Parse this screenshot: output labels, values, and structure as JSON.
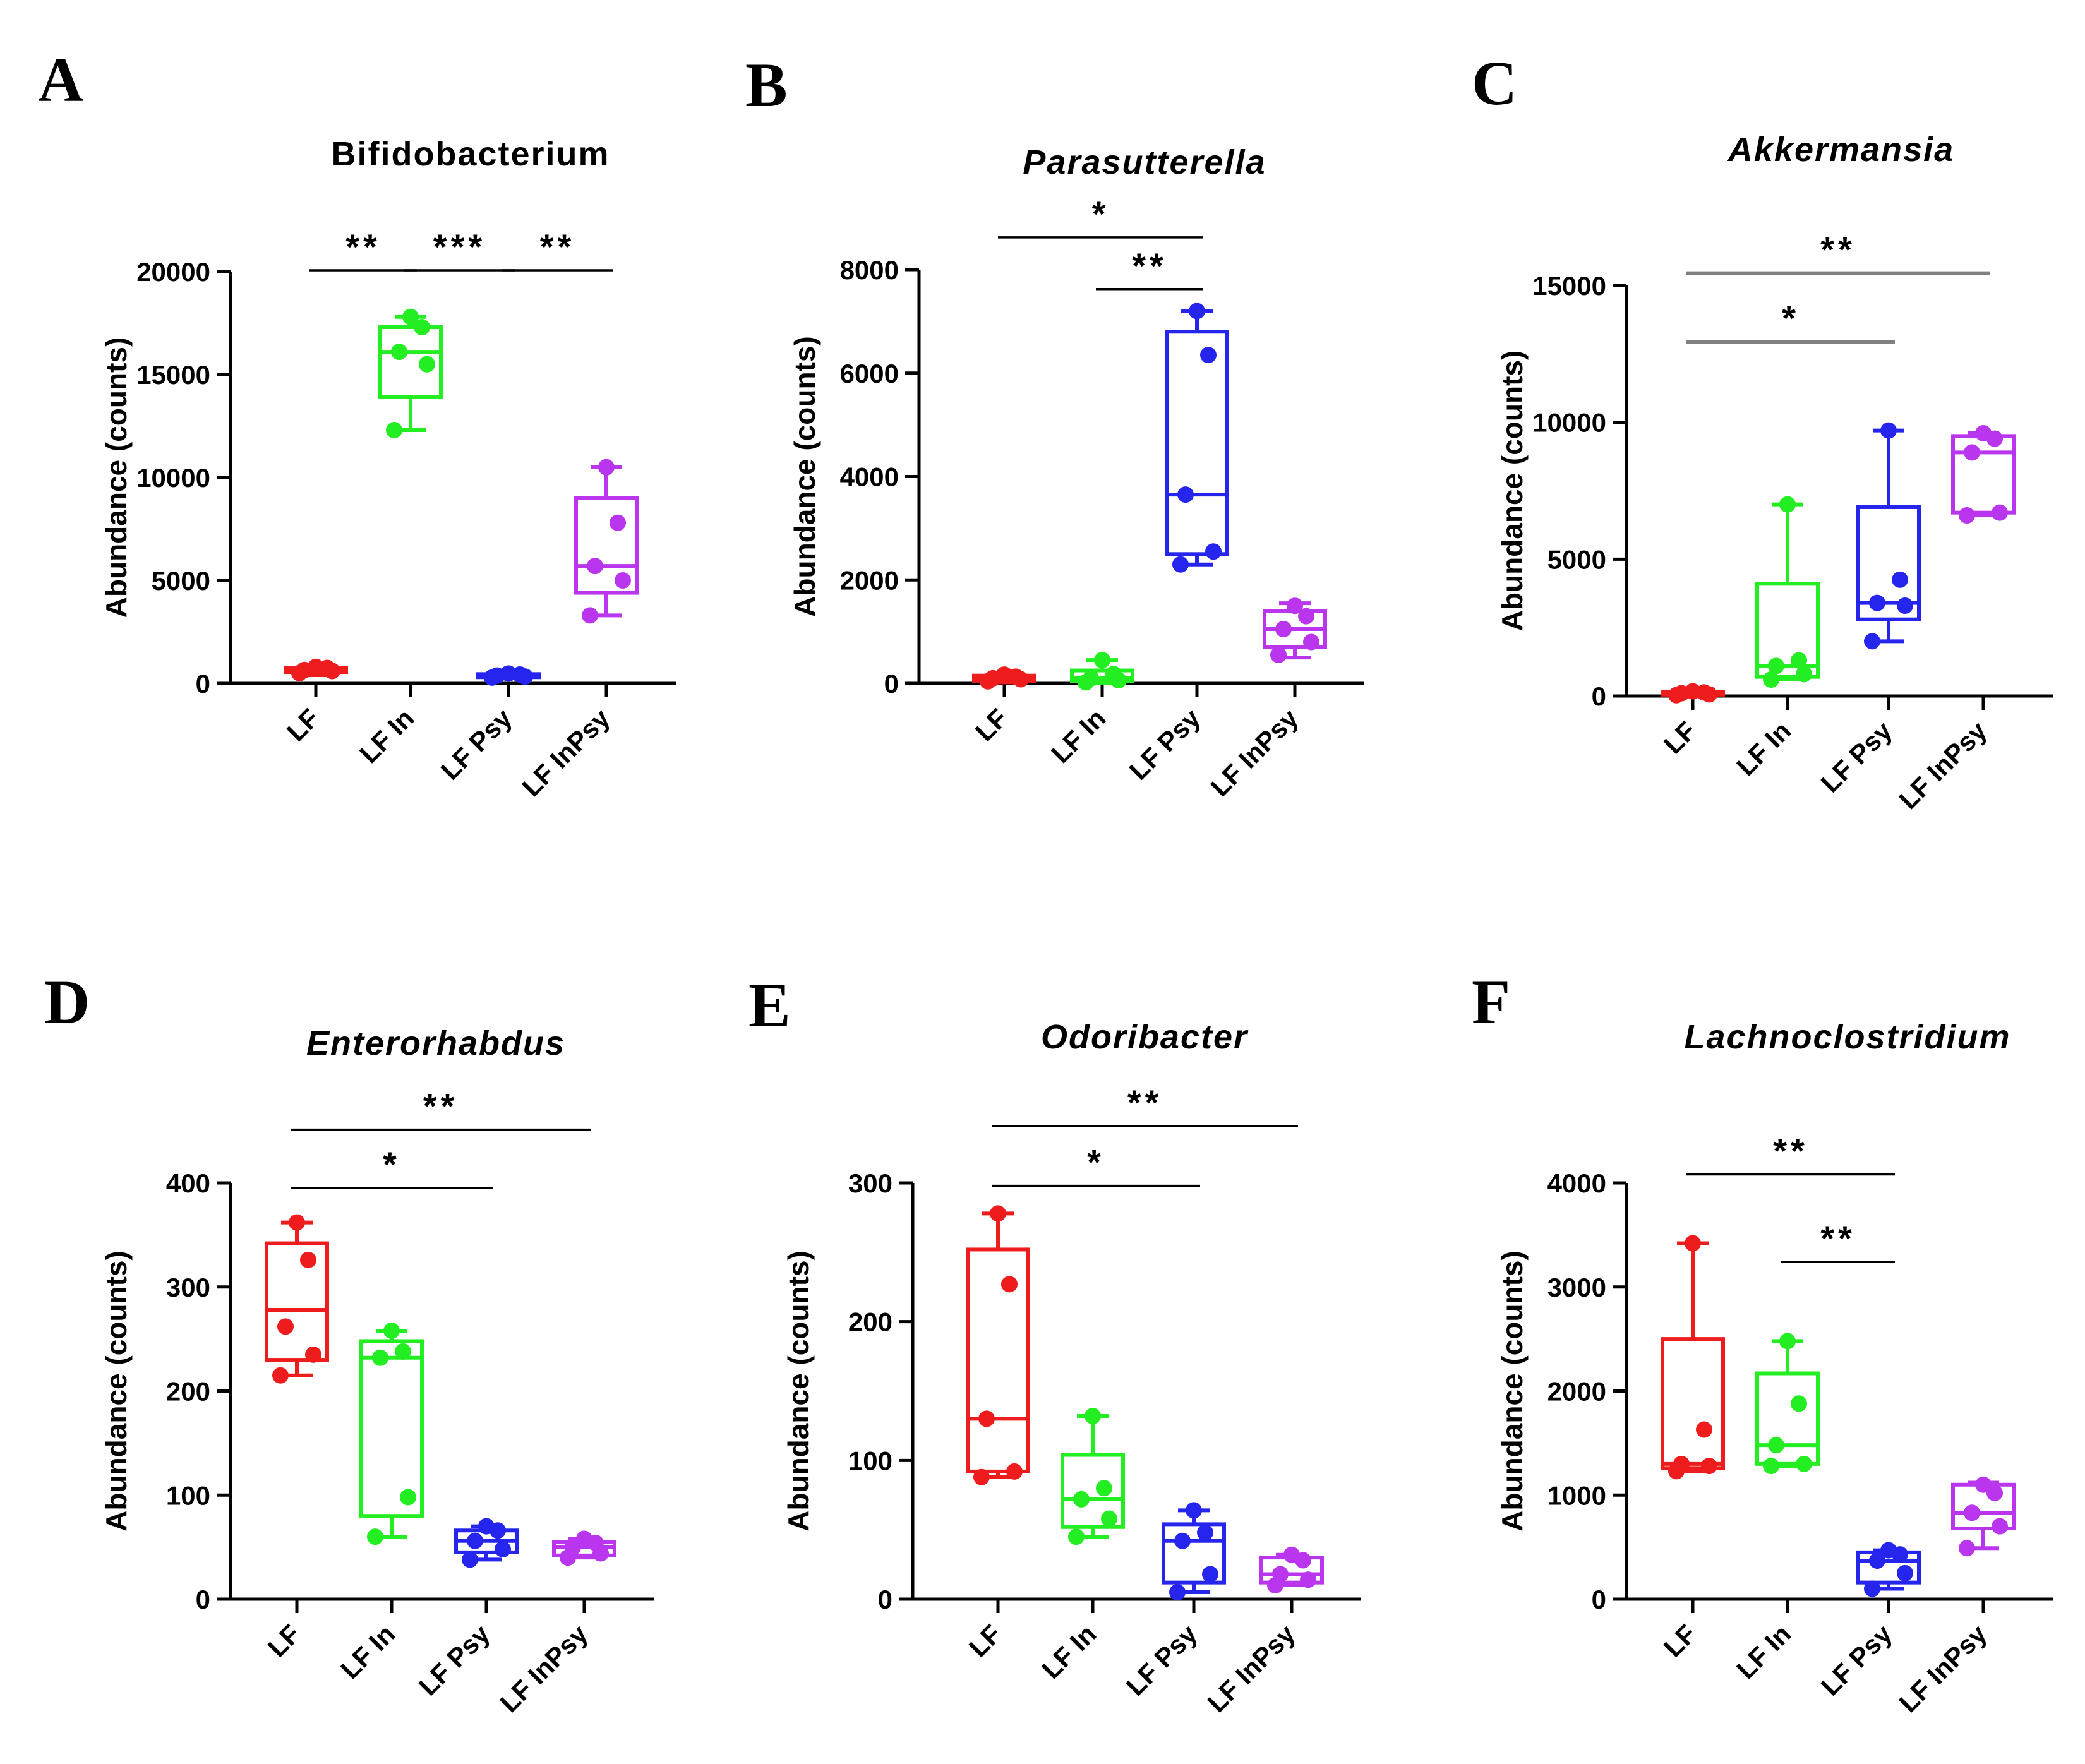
{
  "colors": {
    "LF": "#ee1c1c",
    "LF In": "#22ee22",
    "LF Psy": "#2525ee",
    "LF InPsy": "#b935ee",
    "axis": "#000000",
    "sigline": "#000000",
    "sigline_gray": "#808080"
  },
  "chart_data": [
    {
      "panel": "A",
      "type": "box",
      "title": "Bifidobacterium",
      "title_italic": false,
      "ylabel": "Abundance (counts)",
      "categories": [
        "LF",
        "LF In",
        "LF Psy",
        "LF InPsy"
      ],
      "ylim": [
        0,
        20000
      ],
      "yticks": [
        0,
        5000,
        10000,
        15000,
        20000
      ],
      "ytick_labels": [
        "0",
        "5000",
        "10000",
        "15000",
        "20000"
      ],
      "groups": [
        {
          "name": "LF",
          "min": 400,
          "q1": 550,
          "median": 650,
          "q3": 750,
          "max": 850,
          "points": [
            500,
            600,
            650,
            750,
            800
          ]
        },
        {
          "name": "LF In",
          "min": 12300,
          "q1": 13900,
          "median": 16100,
          "q3": 17300,
          "max": 17800,
          "points": [
            12300,
            15500,
            16100,
            17300,
            17800
          ]
        },
        {
          "name": "LF Psy",
          "min": 250,
          "q1": 300,
          "median": 380,
          "q3": 450,
          "max": 520,
          "points": [
            280,
            330,
            380,
            430,
            480
          ]
        },
        {
          "name": "LF InPsy",
          "min": 3300,
          "q1": 4400,
          "median": 5700,
          "q3": 9000,
          "max": 10500,
          "points": [
            3300,
            5000,
            5700,
            7800,
            10500
          ]
        }
      ],
      "significance": [
        {
          "from": "LF",
          "to": "LF In",
          "label": "**",
          "y": 20000,
          "color": "sigline"
        },
        {
          "from": "LF In",
          "to": "LF Psy",
          "label": "***",
          "y": 20000,
          "color": "sigline"
        },
        {
          "from": "LF Psy",
          "to": "LF InPsy",
          "label": "**",
          "y": 20000,
          "color": "sigline"
        }
      ]
    },
    {
      "panel": "B",
      "type": "box",
      "title": "Parasutterella",
      "title_italic": true,
      "ylabel": "Abundance (counts)",
      "categories": [
        "LF",
        "LF In",
        "LF Psy",
        "LF InPsy"
      ],
      "ylim": [
        0,
        8000
      ],
      "yticks": [
        0,
        2000,
        4000,
        6000,
        8000
      ],
      "ytick_labels": [
        "0",
        "2000",
        "4000",
        "6000",
        "8000"
      ],
      "groups": [
        {
          "name": "LF",
          "min": 20,
          "q1": 50,
          "median": 100,
          "q3": 150,
          "max": 200,
          "points": [
            40,
            80,
            100,
            130,
            170
          ]
        },
        {
          "name": "LF In",
          "min": 10,
          "q1": 40,
          "median": 100,
          "q3": 250,
          "max": 450,
          "points": [
            20,
            60,
            100,
            180,
            450
          ]
        },
        {
          "name": "LF Psy",
          "min": 2300,
          "q1": 2500,
          "median": 3650,
          "q3": 6800,
          "max": 7200,
          "points": [
            2300,
            2550,
            3650,
            6350,
            7200
          ]
        },
        {
          "name": "LF InPsy",
          "min": 500,
          "q1": 700,
          "median": 1050,
          "q3": 1400,
          "max": 1550,
          "points": [
            550,
            800,
            1050,
            1300,
            1500
          ]
        }
      ],
      "significance": [
        {
          "from": "LF",
          "to": "LF Psy",
          "label": "*",
          "y": 8600,
          "color": "sigline"
        },
        {
          "from": "LF In",
          "to": "LF Psy",
          "label": "**",
          "y": 7600,
          "color": "sigline"
        }
      ]
    },
    {
      "panel": "C",
      "type": "box",
      "title": "Akkermansia",
      "title_italic": true,
      "ylabel": "Abundance (counts)",
      "categories": [
        "LF",
        "LF In",
        "LF Psy",
        "LF InPsy"
      ],
      "ylim": [
        0,
        15000
      ],
      "yticks": [
        0,
        5000,
        10000,
        15000
      ],
      "ytick_labels": [
        "0",
        "5000",
        "10000",
        "15000"
      ],
      "groups": [
        {
          "name": "LF",
          "min": 10,
          "q1": 50,
          "median": 100,
          "q3": 150,
          "max": 200,
          "points": [
            30,
            60,
            100,
            130,
            170
          ]
        },
        {
          "name": "LF In",
          "min": 600,
          "q1": 700,
          "median": 1100,
          "q3": 4100,
          "max": 7000,
          "points": [
            600,
            800,
            1100,
            1300,
            7000
          ]
        },
        {
          "name": "LF Psy",
          "min": 2000,
          "q1": 2800,
          "median": 3400,
          "q3": 6900,
          "max": 9700,
          "points": [
            2000,
            3300,
            3400,
            4250,
            9700
          ]
        },
        {
          "name": "LF InPsy",
          "min": 6600,
          "q1": 6700,
          "median": 8900,
          "q3": 9500,
          "max": 9600,
          "points": [
            6600,
            6700,
            8900,
            9400,
            9600
          ]
        }
      ],
      "significance": [
        {
          "from": "LF",
          "to": "LF InPsy",
          "label": "**",
          "y": 15400,
          "color": "sigline_gray"
        },
        {
          "from": "LF",
          "to": "LF Psy",
          "label": "*",
          "y": 12900,
          "color": "sigline_gray"
        }
      ]
    },
    {
      "panel": "D",
      "type": "box",
      "title": "Enterorhabdus",
      "title_italic": true,
      "ylabel": "Abundance (counts)",
      "categories": [
        "LF",
        "LF In",
        "LF Psy",
        "LF InPsy"
      ],
      "ylim": [
        0,
        400
      ],
      "yticks": [
        0,
        100,
        200,
        300,
        400
      ],
      "ytick_labels": [
        "0",
        "100",
        "200",
        "300",
        "400"
      ],
      "groups": [
        {
          "name": "LF",
          "min": 215,
          "q1": 230,
          "median": 278,
          "q3": 342,
          "max": 362,
          "points": [
            215,
            235,
            262,
            326,
            362
          ]
        },
        {
          "name": "LF In",
          "min": 60,
          "q1": 80,
          "median": 232,
          "q3": 248,
          "max": 258,
          "points": [
            60,
            98,
            232,
            238,
            258
          ]
        },
        {
          "name": "LF Psy",
          "min": 38,
          "q1": 45,
          "median": 56,
          "q3": 66,
          "max": 70,
          "points": [
            38,
            48,
            56,
            66,
            70
          ]
        },
        {
          "name": "LF InPsy",
          "min": 40,
          "q1": 42,
          "median": 50,
          "q3": 55,
          "max": 58,
          "points": [
            40,
            44,
            50,
            54,
            58
          ]
        }
      ],
      "significance": [
        {
          "from": "LF",
          "to": "LF InPsy",
          "label": "**",
          "y": 450,
          "color": "sigline"
        },
        {
          "from": "LF",
          "to": "LF Psy",
          "label": "*",
          "y": 394,
          "color": "sigline"
        }
      ]
    },
    {
      "panel": "E",
      "type": "box",
      "title": "Odoribacter",
      "title_italic": true,
      "ylabel": "Abundance (counts)",
      "categories": [
        "LF",
        "LF In",
        "LF Psy",
        "LF InPsy"
      ],
      "ylim": [
        0,
        300
      ],
      "yticks": [
        0,
        100,
        200,
        300
      ],
      "ytick_labels": [
        "0",
        "100",
        "200",
        "300"
      ],
      "groups": [
        {
          "name": "LF",
          "min": 88,
          "q1": 92,
          "median": 130,
          "q3": 252,
          "max": 278,
          "points": [
            88,
            92,
            130,
            227,
            278
          ]
        },
        {
          "name": "LF In",
          "min": 45,
          "q1": 52,
          "median": 72,
          "q3": 104,
          "max": 132,
          "points": [
            45,
            58,
            72,
            80,
            132
          ]
        },
        {
          "name": "LF Psy",
          "min": 5,
          "q1": 12,
          "median": 42,
          "q3": 54,
          "max": 64,
          "points": [
            5,
            18,
            42,
            48,
            64
          ]
        },
        {
          "name": "LF InPsy",
          "min": 10,
          "q1": 12,
          "median": 18,
          "q3": 30,
          "max": 32,
          "points": [
            10,
            14,
            18,
            28,
            32
          ]
        }
      ],
      "significance": [
        {
          "from": "LF",
          "to": "LF InPsy",
          "label": "**",
          "y": 340,
          "color": "sigline"
        },
        {
          "from": "LF",
          "to": "LF Psy",
          "label": "*",
          "y": 297,
          "color": "sigline"
        }
      ]
    },
    {
      "panel": "F",
      "type": "box",
      "title": "Lachnoclostridium",
      "title_italic": true,
      "ylabel": "Abundance (counts)",
      "categories": [
        "LF",
        "LF In",
        "LF Psy",
        "LF InPsy"
      ],
      "ylim": [
        0,
        4000
      ],
      "yticks": [
        0,
        1000,
        2000,
        3000,
        4000
      ],
      "ytick_labels": [
        "0",
        "1000",
        "2000",
        "3000",
        "4000"
      ],
      "groups": [
        {
          "name": "LF",
          "min": 1230,
          "q1": 1260,
          "median": 1300,
          "q3": 2500,
          "max": 3420,
          "points": [
            1230,
            1280,
            1300,
            1630,
            3420
          ]
        },
        {
          "name": "LF In",
          "min": 1280,
          "q1": 1300,
          "median": 1480,
          "q3": 2170,
          "max": 2480,
          "points": [
            1280,
            1300,
            1480,
            1880,
            2480
          ]
        },
        {
          "name": "LF Psy",
          "min": 100,
          "q1": 160,
          "median": 370,
          "q3": 450,
          "max": 470,
          "points": [
            100,
            250,
            370,
            430,
            470
          ]
        },
        {
          "name": "LF InPsy",
          "min": 490,
          "q1": 680,
          "median": 830,
          "q3": 1100,
          "max": 1120,
          "points": [
            490,
            700,
            830,
            1020,
            1100
          ]
        }
      ],
      "significance": [
        {
          "from": "LF",
          "to": "LF Psy",
          "label": "**",
          "y": 4070,
          "color": "sigline"
        },
        {
          "from": "LF In",
          "to": "LF Psy",
          "label": "**",
          "y": 3230,
          "color": "sigline"
        }
      ]
    }
  ]
}
